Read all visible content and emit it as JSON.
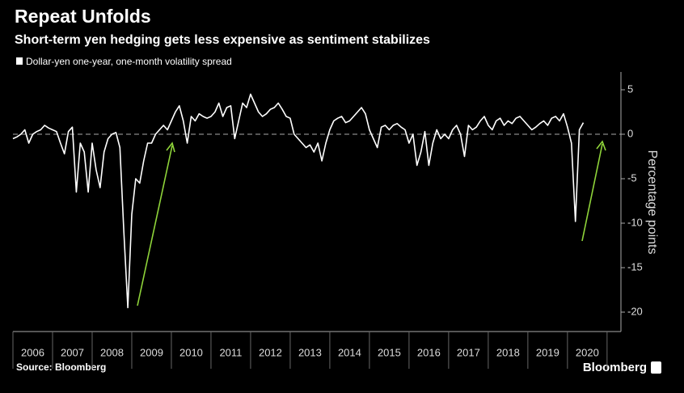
{
  "chart_data": {
    "type": "line",
    "title": "Repeat Unfolds",
    "subtitle": "Short-term yen hedging gets less expensive as sentiment stabilizes",
    "y_label": "Percentage points",
    "source": "Source: Bloomberg",
    "brand": "Bloomberg",
    "x": [
      2006,
      2006.1,
      2006.2,
      2006.3,
      2006.4,
      2006.5,
      2006.6,
      2006.7,
      2006.8,
      2006.9,
      2007,
      2007.1,
      2007.2,
      2007.3,
      2007.4,
      2007.5,
      2007.6,
      2007.7,
      2007.8,
      2007.9,
      2008,
      2008.1,
      2008.2,
      2008.3,
      2008.4,
      2008.5,
      2008.6,
      2008.7,
      2008.8,
      2008.9,
      2009,
      2009.1,
      2009.2,
      2009.3,
      2009.4,
      2009.5,
      2009.6,
      2009.7,
      2009.8,
      2009.9,
      2010,
      2010.1,
      2010.2,
      2010.3,
      2010.4,
      2010.5,
      2010.6,
      2010.7,
      2010.8,
      2010.9,
      2011,
      2011.1,
      2011.2,
      2011.3,
      2011.4,
      2011.5,
      2011.6,
      2011.7,
      2011.8,
      2011.9,
      2012,
      2012.1,
      2012.2,
      2012.3,
      2012.4,
      2012.5,
      2012.6,
      2012.7,
      2012.8,
      2012.9,
      2013,
      2013.1,
      2013.2,
      2013.3,
      2013.4,
      2013.5,
      2013.6,
      2013.7,
      2013.8,
      2013.9,
      2014,
      2014.1,
      2014.2,
      2014.3,
      2014.4,
      2014.5,
      2014.6,
      2014.7,
      2014.8,
      2014.9,
      2015,
      2015.1,
      2015.2,
      2015.3,
      2015.4,
      2015.5,
      2015.6,
      2015.7,
      2015.8,
      2015.9,
      2016,
      2016.1,
      2016.2,
      2016.3,
      2016.4,
      2016.5,
      2016.6,
      2016.7,
      2016.8,
      2016.9,
      2017,
      2017.1,
      2017.2,
      2017.3,
      2017.4,
      2017.5,
      2017.6,
      2017.7,
      2017.8,
      2017.9,
      2018,
      2018.1,
      2018.2,
      2018.3,
      2018.4,
      2018.5,
      2018.6,
      2018.7,
      2018.8,
      2018.9,
      2019,
      2019.1,
      2019.2,
      2019.3,
      2019.4,
      2019.5,
      2019.6,
      2019.7,
      2019.8,
      2019.9,
      2020,
      2020.1,
      2020.2,
      2020.3,
      2020.4
    ],
    "series": [
      {
        "name": "Dollar-yen one-year, one-month volatility spread",
        "color": "#ffffff",
        "values": [
          -0.5,
          -0.3,
          0,
          0.5,
          -1,
          0,
          0.3,
          0.5,
          1,
          0.7,
          0.5,
          0.3,
          -1,
          -2.2,
          0.3,
          0.8,
          -6.5,
          -1,
          -2,
          -6.5,
          -1,
          -4,
          -6,
          -2,
          -0.5,
          0,
          0.2,
          -1.5,
          -11,
          -19.5,
          -9,
          -5,
          -5.5,
          -3,
          -1,
          -1,
          0,
          0.5,
          1,
          0.5,
          1.5,
          2.5,
          3.2,
          1.5,
          -1,
          2,
          1.5,
          2.3,
          2,
          1.8,
          2,
          2.5,
          3.5,
          2,
          3,
          3.2,
          -0.5,
          1.5,
          3.5,
          3,
          4.5,
          3.5,
          2.5,
          2,
          2.3,
          2.8,
          3,
          3.5,
          2.8,
          2,
          1.8,
          0,
          -0.5,
          -1,
          -1.5,
          -1.2,
          -2,
          -1,
          -3,
          -1,
          0.5,
          1.5,
          1.8,
          2,
          1.3,
          1.5,
          2,
          2.5,
          3,
          2.3,
          0.5,
          -0.5,
          -1.5,
          0.8,
          1,
          0.5,
          1,
          1.2,
          0.8,
          0.5,
          -1,
          0,
          -3.5,
          -2,
          0.3,
          -3.5,
          -1,
          0.5,
          -0.5,
          0,
          -0.5,
          0.5,
          1,
          0,
          -2.5,
          1,
          0.5,
          0.8,
          1.5,
          2,
          1,
          0.5,
          1.5,
          1.8,
          1,
          1.5,
          1.2,
          1.8,
          2,
          1.5,
          1,
          0.5,
          0.8,
          1.2,
          1.5,
          1,
          1.8,
          2,
          1.5,
          2.3,
          0.8,
          -1,
          -9.8,
          0.5,
          1.3
        ]
      }
    ],
    "xlim": [
      2006,
      2021.35
    ],
    "xticks": [
      {
        "value": 2006,
        "label": "2006"
      },
      {
        "value": 2007,
        "label": "2007"
      },
      {
        "value": 2008,
        "label": "2008"
      },
      {
        "value": 2009,
        "label": "2009"
      },
      {
        "value": 2010,
        "label": "2010"
      },
      {
        "value": 2011,
        "label": "2011"
      },
      {
        "value": 2012,
        "label": "2012"
      },
      {
        "value": 2013,
        "label": "2013"
      },
      {
        "value": 2014,
        "label": "2014"
      },
      {
        "value": 2015,
        "label": "2015"
      },
      {
        "value": 2016,
        "label": "2016"
      },
      {
        "value": 2017,
        "label": "2017"
      },
      {
        "value": 2018,
        "label": "2018"
      },
      {
        "value": 2019,
        "label": "2019"
      },
      {
        "value": 2020,
        "label": "2020"
      }
    ],
    "ylim": [
      -22,
      7
    ],
    "yticks": [
      5,
      0,
      -5,
      -10,
      -15,
      -20
    ],
    "zero_line": true
  }
}
